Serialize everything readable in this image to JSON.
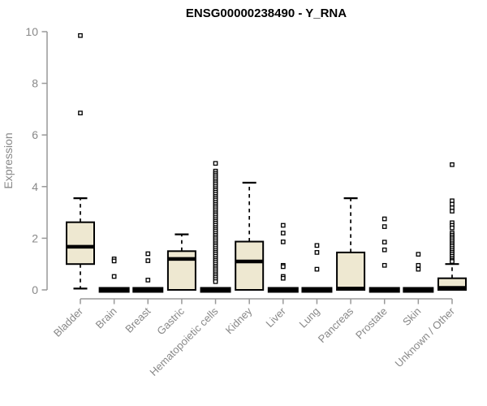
{
  "chart_data": {
    "type": "box",
    "title": "ENSG00000238490 - Y_RNA",
    "ylabel": "Expression",
    "xlabel": "",
    "ylim": [
      0,
      10
    ],
    "yticks": [
      0,
      2,
      4,
      6,
      8,
      10
    ],
    "grid": false,
    "legend": false,
    "box_fill_color": "#EEE8D1",
    "box_stroke_color": "#000000",
    "axis_color": "#999999",
    "tick_label_color": "#888888",
    "title_color": "#000000",
    "outlier_fill_color": "#ffffff",
    "categories": [
      "Bladder",
      "Brain",
      "Breast",
      "Gastric",
      "Hematopoietic cells",
      "Kidney",
      "Liver",
      "Lung",
      "Pancreas",
      "Prostate",
      "Skin",
      "Unknown / Other"
    ],
    "boxes": [
      {
        "category": "Bladder",
        "whisker_low": 0.05,
        "q1": 1.0,
        "median": 1.67,
        "q3": 2.62,
        "whisker_high": 3.55,
        "outliers": [
          9.85,
          6.85
        ]
      },
      {
        "category": "Brain",
        "whisker_low": 0,
        "q1": 0,
        "median": 0,
        "q3": 0,
        "whisker_high": 0,
        "outliers": [
          1.2,
          1.12,
          0.52
        ]
      },
      {
        "category": "Breast",
        "whisker_low": 0,
        "q1": 0,
        "median": 0,
        "q3": 0,
        "whisker_high": 0,
        "outliers": [
          1.4,
          1.13,
          0.38
        ]
      },
      {
        "category": "Gastric",
        "whisker_low": 0,
        "q1": 0,
        "median": 1.2,
        "q3": 1.5,
        "whisker_high": 2.15,
        "outliers": []
      },
      {
        "category": "Hematopoietic cells",
        "whisker_low": 0,
        "q1": 0,
        "median": 0,
        "q3": 0,
        "whisker_high": 0,
        "outliers": [
          4.9,
          4.6,
          4.52,
          4.45,
          4.38,
          4.3,
          4.22,
          4.15,
          4.08,
          4.0,
          3.92,
          3.85,
          3.78,
          3.7,
          3.62,
          3.55,
          3.48,
          3.4,
          3.32,
          3.25,
          3.18,
          3.1,
          3.02,
          2.95,
          2.88,
          2.8,
          2.72,
          2.65,
          2.58,
          2.5,
          2.42,
          2.35,
          2.28,
          2.2,
          2.12,
          2.05,
          1.98,
          1.9,
          1.82,
          1.75,
          1.68,
          1.6,
          1.52,
          1.45,
          1.38,
          1.3,
          1.22,
          1.15,
          1.08,
          1.0,
          0.92,
          0.85,
          0.78,
          0.7,
          0.62,
          0.55,
          0.48,
          0.4,
          0.32
        ]
      },
      {
        "category": "Kidney",
        "whisker_low": 0,
        "q1": 0,
        "median": 1.1,
        "q3": 1.87,
        "whisker_high": 4.15,
        "outliers": []
      },
      {
        "category": "Liver",
        "whisker_low": 0,
        "q1": 0,
        "median": 0,
        "q3": 0,
        "whisker_high": 0,
        "outliers": [
          2.5,
          2.2,
          1.86,
          0.95,
          0.9,
          0.52,
          0.45
        ]
      },
      {
        "category": "Lung",
        "whisker_low": 0,
        "q1": 0,
        "median": 0,
        "q3": 0,
        "whisker_high": 0,
        "outliers": [
          1.72,
          1.45,
          0.8
        ]
      },
      {
        "category": "Pancreas",
        "whisker_low": 0,
        "q1": 0,
        "median": 0.05,
        "q3": 1.45,
        "whisker_high": 3.55,
        "outliers": []
      },
      {
        "category": "Prostate",
        "whisker_low": 0,
        "q1": 0,
        "median": 0,
        "q3": 0,
        "whisker_high": 0,
        "outliers": [
          2.75,
          2.45,
          1.85,
          1.55,
          0.95
        ]
      },
      {
        "category": "Skin",
        "whisker_low": 0,
        "q1": 0,
        "median": 0,
        "q3": 0,
        "whisker_high": 0,
        "outliers": [
          1.38,
          0.95,
          0.8
        ]
      },
      {
        "category": "Unknown / Other",
        "whisker_low": 0,
        "q1": 0,
        "median": 0.08,
        "q3": 0.45,
        "whisker_high": 1.0,
        "outliers": [
          4.85,
          3.45,
          3.32,
          3.18,
          3.05,
          2.6,
          2.5,
          2.4,
          2.2,
          2.12,
          2.05,
          1.98,
          1.9,
          1.82,
          1.75,
          1.68,
          1.6,
          1.52,
          1.45,
          1.38,
          1.3,
          1.22,
          1.15,
          1.1
        ]
      }
    ]
  }
}
